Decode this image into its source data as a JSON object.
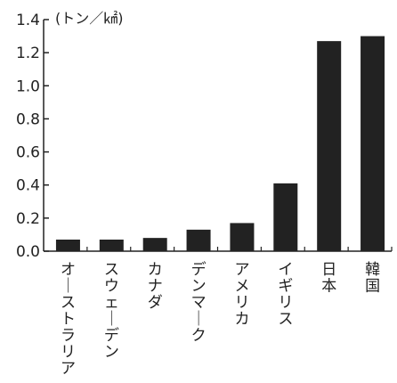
{
  "chart_data": {
    "type": "bar",
    "unit_label": "(トン／㎢)",
    "categories": [
      "オーストラリア",
      "スウェーデン",
      "カナダ",
      "デンマーク",
      "アメリカ",
      "イギリス",
      "日本",
      "韓国"
    ],
    "values": [
      0.07,
      0.07,
      0.08,
      0.13,
      0.17,
      0.41,
      1.27,
      1.3
    ],
    "ylim": [
      0,
      1.4
    ],
    "yticks": [
      "0.0",
      "0.2",
      "0.4",
      "0.6",
      "0.8",
      "1.0",
      "1.2",
      "1.4"
    ],
    "bar_color": "#222222",
    "grid": false
  }
}
